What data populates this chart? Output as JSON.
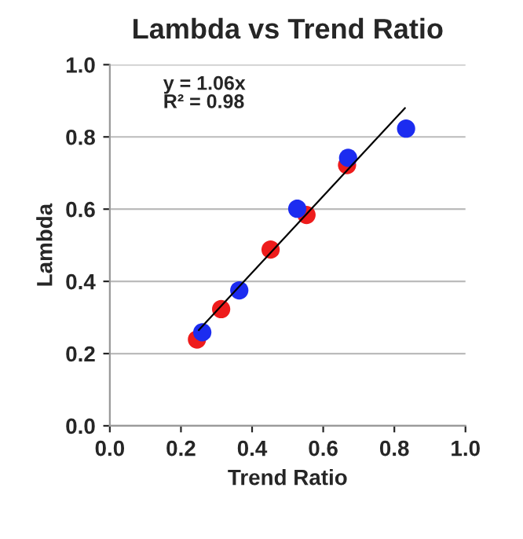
{
  "chart_data": {
    "type": "scatter",
    "title": "Lambda vs Trend Ratio",
    "xlabel": "Trend Ratio",
    "ylabel": "Lambda",
    "xlim": [
      0,
      1
    ],
    "ylim": [
      0,
      1
    ],
    "xticks": [
      {
        "value": 0,
        "label": "0.0"
      },
      {
        "value": 0.2,
        "label": "0.2"
      },
      {
        "value": 0.4,
        "label": "0.4"
      },
      {
        "value": 0.6,
        "label": "0.6"
      },
      {
        "value": 0.8,
        "label": "0.8"
      },
      {
        "value": 1,
        "label": "1.0"
      }
    ],
    "yticks": [
      {
        "value": 0,
        "label": "0.0"
      },
      {
        "value": 0.2,
        "label": "0.2"
      },
      {
        "value": 0.4,
        "label": "0.4"
      },
      {
        "value": 0.6,
        "label": "0.6"
      },
      {
        "value": 0.8,
        "label": "0.8"
      },
      {
        "value": 1,
        "label": "1.0"
      }
    ],
    "grid": "y",
    "marker": "circle",
    "series": [
      {
        "color": "#ee1c1c",
        "x": [
          0.245,
          0.313,
          0.452,
          0.553,
          0.667
        ],
        "values": [
          0.239,
          0.323,
          0.488,
          0.584,
          0.722
        ]
      },
      {
        "color": "#1c2cf0",
        "x": [
          0.26,
          0.364,
          0.527,
          0.67,
          0.833
        ],
        "values": [
          0.259,
          0.375,
          0.601,
          0.742,
          0.823
        ]
      },
      {
        "type": "line",
        "color": "#000000",
        "line_style": "solid",
        "marker": "none",
        "x": [
          0.25,
          0.83
        ],
        "values": [
          0.265,
          0.88
        ]
      }
    ],
    "annotations": [
      "y = 1.06x\nR² = 0.98"
    ]
  }
}
